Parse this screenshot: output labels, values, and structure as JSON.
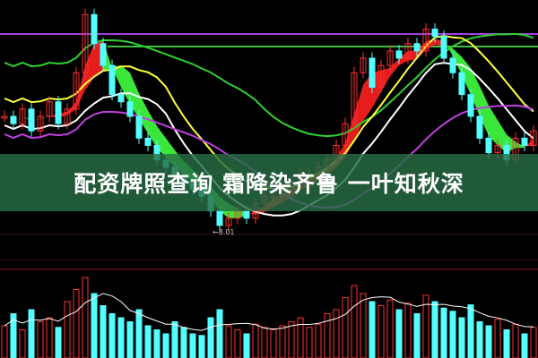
{
  "banner": {
    "title": "配资牌照查询 霜降染齐鲁 一叶知秋深"
  },
  "chart_data": {
    "type": "candlestick",
    "annotations": [
      "8.01"
    ],
    "low_marker": 8.01,
    "closes": [
      9.6,
      9.5,
      9.7,
      9.4,
      9.6,
      9.8,
      9.5,
      9.7,
      10.2,
      11.0,
      10.6,
      10.3,
      9.9,
      9.8,
      9.6,
      9.3,
      9.2,
      9.0,
      8.9,
      8.8,
      8.7,
      8.6,
      8.5,
      8.3,
      8.1,
      8.2,
      8.3,
      8.2,
      8.4,
      8.5,
      8.5,
      8.6,
      8.7,
      8.8,
      8.8,
      8.9,
      9.0,
      9.2,
      9.5,
      10.2,
      10.4,
      10.0,
      10.3,
      10.5,
      10.4,
      10.6,
      10.5,
      10.8,
      10.7,
      10.4,
      10.2,
      9.9,
      9.6,
      9.3,
      9.1,
      9.2,
      9.0,
      9.3,
      9.2,
      9.4
    ],
    "volumes": [
      40,
      55,
      35,
      60,
      45,
      50,
      38,
      70,
      85,
      100,
      80,
      65,
      55,
      50,
      45,
      60,
      40,
      35,
      30,
      45,
      38,
      30,
      28,
      50,
      60,
      40,
      35,
      30,
      42,
      38,
      35,
      40,
      45,
      50,
      38,
      42,
      55,
      60,
      75,
      90,
      80,
      70,
      65,
      72,
      60,
      68,
      55,
      78,
      70,
      62,
      58,
      50,
      66,
      45,
      40,
      48,
      35,
      42,
      30,
      38
    ],
    "colors": {
      "up": "#ff3030",
      "down": "#54ffff",
      "ma_short": "#ffff40",
      "ma_long": "#30d030",
      "ma_white": "#ffffff",
      "ma_purple": "#c040e0",
      "ribbon_up": "#ff2020",
      "ribbon_down": "#40ff40"
    }
  }
}
